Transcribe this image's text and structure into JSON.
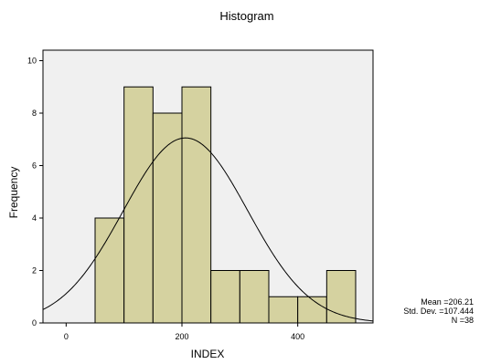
{
  "chart_data": {
    "type": "bar",
    "title": "Histogram",
    "xlabel": "INDEX",
    "ylabel": "Frequency",
    "bin_edges": [
      50,
      100,
      150,
      200,
      250,
      300,
      350,
      400,
      450,
      500
    ],
    "values": [
      4,
      9,
      8,
      9,
      2,
      2,
      1,
      1,
      2
    ],
    "xlim": [
      -40,
      530
    ],
    "ylim": [
      0,
      10.4
    ],
    "x_ticks": [
      0,
      200,
      400
    ],
    "y_ticks": [
      0,
      2,
      4,
      6,
      8,
      10
    ],
    "normal_curve": {
      "mean": 206.21,
      "std_dev": 107.444,
      "n": 38,
      "bin_width": 50
    },
    "grid": false,
    "colors": {
      "bar_fill": "#d5d2a0",
      "bar_stroke": "#000000",
      "plot_bg": "#f0f0f0",
      "curve": "#000000"
    }
  },
  "stats": {
    "mean_text": "Mean =206.21",
    "sd_text": "Std. Dev. =107.444",
    "n_text": "N =38"
  }
}
